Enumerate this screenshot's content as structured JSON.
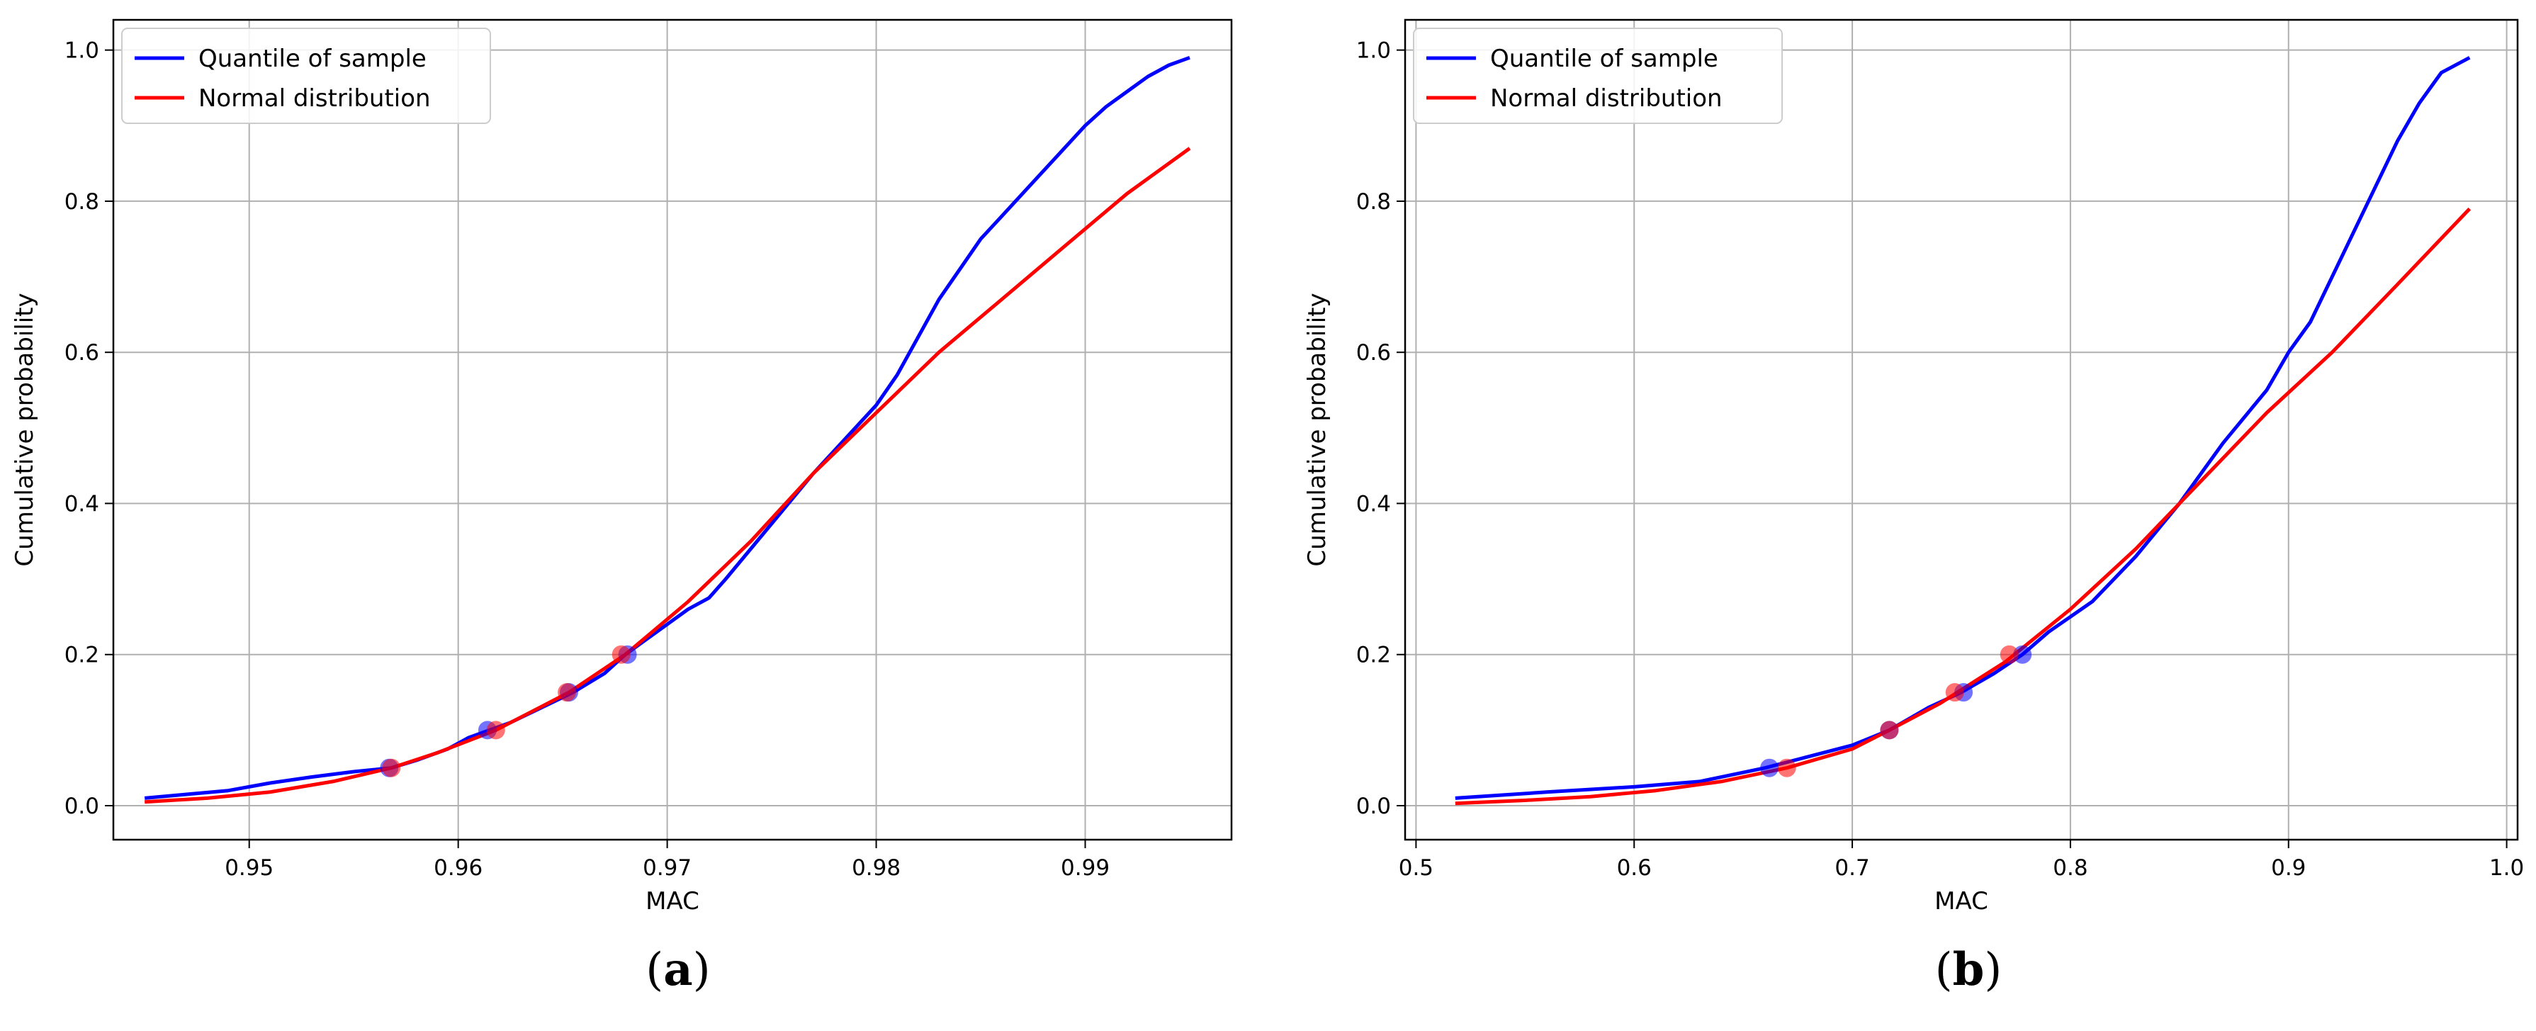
{
  "chart_data": [
    {
      "type": "line",
      "panel_label": "a",
      "xlabel": "MAC",
      "ylabel": "Cumulative probability",
      "xlim": [
        0.9435,
        0.997
      ],
      "ylim": [
        -0.045,
        1.04
      ],
      "xticks": [
        0.95,
        0.96,
        0.97,
        0.98,
        0.99
      ],
      "xtick_labels": [
        "0.95",
        "0.96",
        "0.97",
        "0.98",
        "0.99"
      ],
      "yticks": [
        0.0,
        0.2,
        0.4,
        0.6,
        0.8,
        1.0
      ],
      "ytick_labels": [
        "0.0",
        "0.2",
        "0.4",
        "0.6",
        "0.8",
        "1.0"
      ],
      "grid": true,
      "legend_location": "upper left",
      "series": [
        {
          "name": "Quantile of sample",
          "color": "#0000ff",
          "x": [
            0.945,
            0.947,
            0.949,
            0.951,
            0.953,
            0.955,
            0.9568,
            0.958,
            0.9595,
            0.9605,
            0.9615,
            0.9625,
            0.964,
            0.9655,
            0.967,
            0.968,
            0.969,
            0.97,
            0.971,
            0.972,
            0.9728,
            0.974,
            0.9755,
            0.977,
            0.978,
            0.979,
            0.98,
            0.981,
            0.982,
            0.983,
            0.984,
            0.985,
            0.986,
            0.987,
            0.988,
            0.989,
            0.99,
            0.991,
            0.992,
            0.993,
            0.994,
            0.995
          ],
          "y": [
            0.01,
            0.015,
            0.02,
            0.03,
            0.038,
            0.045,
            0.05,
            0.06,
            0.075,
            0.09,
            0.1,
            0.11,
            0.13,
            0.15,
            0.175,
            0.2,
            0.22,
            0.24,
            0.26,
            0.275,
            0.3,
            0.34,
            0.39,
            0.44,
            0.47,
            0.5,
            0.53,
            0.57,
            0.62,
            0.67,
            0.71,
            0.75,
            0.78,
            0.81,
            0.84,
            0.87,
            0.9,
            0.925,
            0.945,
            0.965,
            0.98,
            0.99
          ]
        },
        {
          "name": "Normal distribution",
          "color": "#ff0000",
          "x": [
            0.945,
            0.948,
            0.951,
            0.954,
            0.9568,
            0.959,
            0.9618,
            0.9653,
            0.968,
            0.971,
            0.974,
            0.977,
            0.98,
            0.983,
            0.986,
            0.989,
            0.992,
            0.995
          ],
          "y": [
            0.005,
            0.01,
            0.018,
            0.032,
            0.05,
            0.07,
            0.1,
            0.15,
            0.2,
            0.27,
            0.35,
            0.44,
            0.52,
            0.6,
            0.67,
            0.74,
            0.81,
            0.87
          ]
        }
      ],
      "markers_sample": {
        "color": "#0000ff",
        "x": [
          0.9567,
          0.9614,
          0.9653,
          0.9681
        ],
        "y": [
          0.05,
          0.1,
          0.15,
          0.2
        ]
      },
      "markers_normal": {
        "color": "#ff0000",
        "x": [
          0.9568,
          0.9618,
          0.9652,
          0.9678
        ],
        "y": [
          0.05,
          0.1,
          0.15,
          0.2
        ]
      }
    },
    {
      "type": "line",
      "panel_label": "b",
      "xlabel": "MAC",
      "ylabel": "Cumulative probability",
      "xlim": [
        0.495,
        1.005
      ],
      "ylim": [
        -0.045,
        1.04
      ],
      "xticks": [
        0.5,
        0.6,
        0.7,
        0.8,
        0.9,
        1.0
      ],
      "xtick_labels": [
        "0.5",
        "0.6",
        "0.7",
        "0.8",
        "0.9",
        "1.0"
      ],
      "yticks": [
        0.0,
        0.2,
        0.4,
        0.6,
        0.8,
        1.0
      ],
      "ytick_labels": [
        "0.0",
        "0.2",
        "0.4",
        "0.6",
        "0.8",
        "1.0"
      ],
      "grid": true,
      "legend_location": "upper left",
      "series": [
        {
          "name": "Quantile of sample",
          "color": "#0000ff",
          "x": [
            0.518,
            0.56,
            0.6,
            0.63,
            0.66,
            0.68,
            0.7,
            0.717,
            0.735,
            0.75,
            0.765,
            0.778,
            0.79,
            0.81,
            0.83,
            0.85,
            0.87,
            0.89,
            0.9,
            0.91,
            0.92,
            0.93,
            0.94,
            0.95,
            0.96,
            0.97,
            0.983
          ],
          "y": [
            0.01,
            0.018,
            0.025,
            0.032,
            0.05,
            0.065,
            0.08,
            0.1,
            0.13,
            0.15,
            0.175,
            0.2,
            0.23,
            0.27,
            0.33,
            0.4,
            0.48,
            0.55,
            0.6,
            0.64,
            0.7,
            0.76,
            0.82,
            0.88,
            0.93,
            0.97,
            0.99
          ]
        },
        {
          "name": "Normal distribution",
          "color": "#ff0000",
          "x": [
            0.518,
            0.55,
            0.58,
            0.61,
            0.64,
            0.67,
            0.7,
            0.717,
            0.74,
            0.77,
            0.8,
            0.83,
            0.86,
            0.89,
            0.92,
            0.95,
            0.983
          ],
          "y": [
            0.003,
            0.007,
            0.012,
            0.02,
            0.032,
            0.05,
            0.075,
            0.1,
            0.135,
            0.19,
            0.26,
            0.34,
            0.43,
            0.52,
            0.6,
            0.69,
            0.79
          ]
        }
      ],
      "markers_sample": {
        "color": "#0000ff",
        "x": [
          0.662,
          0.717,
          0.751,
          0.778
        ],
        "y": [
          0.05,
          0.1,
          0.15,
          0.2
        ]
      },
      "markers_normal": {
        "color": "#ff0000",
        "x": [
          0.67,
          0.717,
          0.747,
          0.772
        ],
        "y": [
          0.05,
          0.1,
          0.15,
          0.2
        ]
      }
    }
  ],
  "captions": {
    "a": {
      "open": "(",
      "letter": "a",
      "close": ")"
    },
    "b": {
      "open": "(",
      "letter": "b",
      "close": ")"
    }
  }
}
